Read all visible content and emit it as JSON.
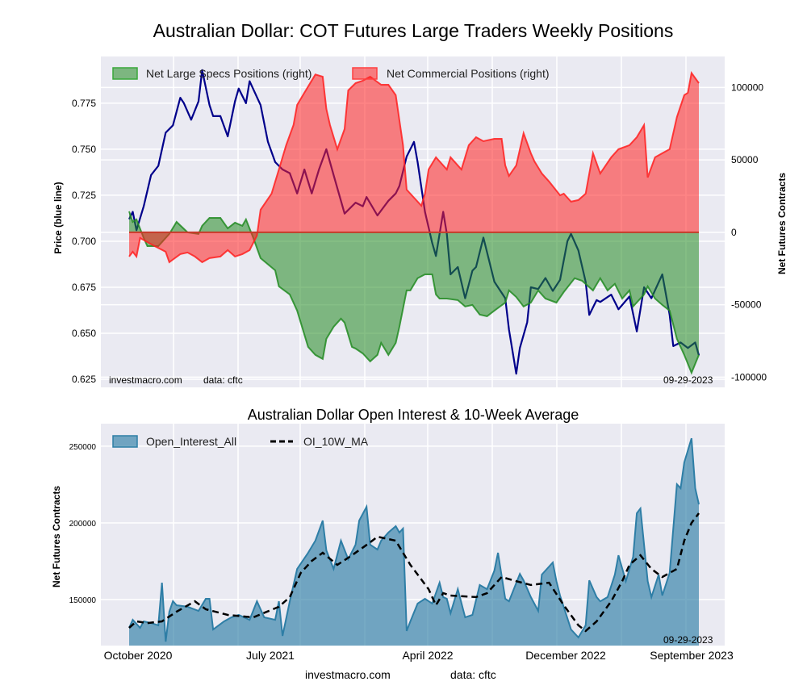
{
  "title": "Australian Dollar: COT Futures Large Traders Weekly Positions",
  "footer": {
    "site": "investmacro.com",
    "source": "data: cftc"
  },
  "colors": {
    "plot_bg": "#eaeaf2",
    "price": "#00008b",
    "commercial": "#ff2020",
    "specs": "#228b22",
    "oi": "#2e7ea6",
    "ma": "#000000"
  },
  "chart_data": [
    {
      "type": "area",
      "title": "Australian Dollar: COT Futures Large Traders Weekly Positions",
      "ylabel": "Price (blue line)",
      "ylabel_right": "Net Futures Contracts",
      "x_unit": "week index",
      "xlim": [
        0,
        156
      ],
      "ylim": [
        0.6206,
        0.8004
      ],
      "ylim_right": [
        -107000,
        121400
      ],
      "yticks": [
        "0.625",
        "0.650",
        "0.675",
        "0.700",
        "0.725",
        "0.750",
        "0.775"
      ],
      "yticks_right": [
        "100000",
        "50000",
        "0",
        "-50000",
        "-100000"
      ],
      "xticks": [
        "October 2020",
        "July 2021",
        "April 2022",
        "December 2022",
        "September 2023"
      ],
      "grid": true,
      "legend_position": "top-left",
      "watermark": {
        "left": "investmacro.com",
        "source": "data: cftc",
        "date": "09-29-2023"
      },
      "series": [
        {
          "name": "Price",
          "axis": "left",
          "x": [
            0,
            1,
            2,
            4,
            6,
            8,
            10,
            12,
            14,
            15,
            17,
            19,
            20,
            22,
            23,
            25,
            27,
            29,
            30,
            32,
            33,
            36,
            38,
            40,
            42,
            44,
            46,
            48,
            50,
            52,
            54,
            56,
            59,
            62,
            64,
            65,
            68,
            71,
            73,
            74,
            76,
            78,
            79,
            81,
            83,
            84,
            86,
            87,
            88,
            90,
            92,
            94,
            95,
            97,
            100,
            103,
            104,
            106,
            107,
            109,
            110,
            112,
            114,
            116,
            118,
            120,
            121,
            123,
            125,
            126,
            128,
            129,
            132,
            134,
            137,
            139,
            141,
            143,
            146,
            148,
            149,
            151,
            153,
            155,
            156
          ],
          "values": [
            0.712,
            0.716,
            0.706,
            0.719,
            0.736,
            0.741,
            0.759,
            0.763,
            0.778,
            0.775,
            0.766,
            0.776,
            0.793,
            0.774,
            0.768,
            0.768,
            0.757,
            0.776,
            0.783,
            0.775,
            0.787,
            0.774,
            0.754,
            0.743,
            0.739,
            0.737,
            0.726,
            0.739,
            0.726,
            0.739,
            0.75,
            0.736,
            0.715,
            0.721,
            0.719,
            0.724,
            0.714,
            0.722,
            0.726,
            0.73,
            0.746,
            0.754,
            0.743,
            0.716,
            0.699,
            0.692,
            0.716,
            0.704,
            0.682,
            0.686,
            0.669,
            0.684,
            0.686,
            0.702,
            0.678,
            0.669,
            0.652,
            0.628,
            0.642,
            0.656,
            0.675,
            0.674,
            0.68,
            0.673,
            0.679,
            0.7,
            0.704,
            0.695,
            0.678,
            0.66,
            0.668,
            0.667,
            0.671,
            0.663,
            0.67,
            0.651,
            0.675,
            0.669,
            0.682,
            0.66,
            0.643,
            0.645,
            0.642,
            0.645,
            0.638
          ]
        },
        {
          "name": "Net Large Specs Positions (right)",
          "axis": "right",
          "x": [
            0,
            1,
            2,
            4,
            5,
            8,
            11,
            13,
            16,
            19,
            20,
            22,
            25,
            27,
            29,
            31,
            32,
            34,
            36,
            40,
            41,
            44,
            46,
            49,
            51,
            53,
            54,
            56,
            58,
            59,
            61,
            62,
            64,
            66,
            68,
            69,
            71,
            73,
            74,
            76,
            77,
            79,
            81,
            83,
            84,
            85,
            87,
            90,
            92,
            94,
            96,
            98,
            100,
            103,
            104,
            106,
            108,
            110,
            112,
            114,
            117,
            119,
            122,
            124,
            127,
            129,
            131,
            133,
            135,
            137,
            138,
            141,
            142,
            144,
            146,
            148,
            150,
            152,
            154,
            156
          ],
          "values": [
            14500,
            7200,
            8900,
            -3900,
            -9500,
            -9500,
            -1100,
            7200,
            0,
            -1100,
            4500,
            10000,
            10000,
            2800,
            6700,
            4500,
            8900,
            -3900,
            -17800,
            -26200,
            -37300,
            -42900,
            -54000,
            -79100,
            -84600,
            -87400,
            -73500,
            -65200,
            -59600,
            -62300,
            -79100,
            -80200,
            -83600,
            -89100,
            -84600,
            -76300,
            -84600,
            -76300,
            -65200,
            -40100,
            -40100,
            -31700,
            -29000,
            -29000,
            -42900,
            -45700,
            -45700,
            -46800,
            -51200,
            -50100,
            -56800,
            -57900,
            -54000,
            -48500,
            -40100,
            -44600,
            -51200,
            -48500,
            -40100,
            -45700,
            -48500,
            -41200,
            -31700,
            -33400,
            -40100,
            -31700,
            -40100,
            -35600,
            -45700,
            -40100,
            -51200,
            -42900,
            -37300,
            -45700,
            -50100,
            -54000,
            -73500,
            -84600,
            -97000,
            -84600
          ]
        },
        {
          "name": "Net Commercial Positions (right)",
          "axis": "right",
          "x": [
            0,
            1,
            2,
            3,
            5,
            7,
            10,
            11,
            14,
            16,
            18,
            20,
            22,
            25,
            27,
            29,
            31,
            33,
            35,
            36,
            39,
            41,
            43,
            45,
            46,
            48,
            51,
            53,
            54,
            55,
            57,
            59,
            60,
            62,
            64,
            66,
            69,
            71,
            73,
            75,
            76,
            77,
            80,
            81,
            82,
            84,
            87,
            88,
            91,
            93,
            95,
            97,
            100,
            102,
            103,
            104,
            106,
            108,
            110,
            111,
            113,
            115,
            118,
            119,
            121,
            123,
            125,
            127,
            129,
            132,
            134,
            137,
            139,
            141,
            142,
            144,
            146,
            148,
            150,
            152,
            153,
            154,
            156
          ],
          "values": [
            -16700,
            -13400,
            -16700,
            -3900,
            -6700,
            -9500,
            -13400,
            -20600,
            -15000,
            -13900,
            -16700,
            -20600,
            -17800,
            -16700,
            -12300,
            -16700,
            -15000,
            -12300,
            -2200,
            15600,
            26700,
            43400,
            60200,
            74100,
            88000,
            96400,
            109000,
            107500,
            85200,
            74100,
            57400,
            71300,
            98000,
            103000,
            104700,
            107500,
            101900,
            101900,
            94700,
            60200,
            29500,
            26700,
            18400,
            26700,
            43400,
            51800,
            43400,
            51800,
            43400,
            60200,
            65700,
            62900,
            64600,
            64600,
            46200,
            39000,
            46200,
            68500,
            54600,
            49000,
            40700,
            35100,
            25600,
            26700,
            21200,
            22300,
            26700,
            54600,
            40700,
            51800,
            57400,
            60200,
            65700,
            74100,
            37900,
            51800,
            54600,
            57400,
            79600,
            94700,
            96400,
            110000,
            103000
          ]
        }
      ]
    },
    {
      "type": "area",
      "title": "Australian Dollar Open Interest & 10-Week Average",
      "ylabel": "Net Futures Contracts",
      "x_unit": "week index",
      "xlim": [
        0,
        156
      ],
      "ylim": [
        120000,
        264700
      ],
      "yticks": [
        "150000",
        "200000",
        "250000"
      ],
      "xticks": [
        "October 2020",
        "July 2021",
        "April 2022",
        "December 2022",
        "September 2023"
      ],
      "grid": true,
      "legend_position": "top-left",
      "watermark": {
        "date": "09-29-2023"
      },
      "series": [
        {
          "name": "Open_Interest_All",
          "x": [
            0,
            1,
            3,
            4,
            6,
            8,
            9,
            10,
            11,
            12,
            13,
            16,
            19,
            21,
            22,
            23,
            26,
            28,
            30,
            33,
            35,
            37,
            40,
            41,
            42,
            44,
            46,
            49,
            51,
            53,
            54,
            56,
            58,
            60,
            62,
            63,
            65,
            66,
            68,
            69,
            71,
            73,
            74,
            75,
            76,
            77,
            79,
            81,
            83,
            85,
            86,
            87,
            88,
            90,
            92,
            94,
            96,
            98,
            100,
            101,
            103,
            104,
            107,
            108,
            110,
            112,
            113,
            116,
            117,
            118,
            121,
            123,
            125,
            126,
            128,
            129,
            131,
            133,
            134,
            136,
            138,
            139,
            140,
            142,
            143,
            145,
            146,
            148,
            150,
            151,
            152,
            154,
            155,
            156
          ],
          "values": [
            131600,
            136800,
            131600,
            135800,
            134700,
            133200,
            161000,
            122600,
            142100,
            149000,
            146300,
            145300,
            142600,
            150500,
            150500,
            130500,
            135800,
            138400,
            140000,
            136800,
            148900,
            138400,
            136800,
            148900,
            126300,
            148900,
            170000,
            180500,
            188400,
            201500,
            182100,
            170000,
            188400,
            176300,
            185800,
            201500,
            210500,
            185800,
            182600,
            188400,
            193700,
            197900,
            193700,
            196300,
            129500,
            135800,
            147400,
            150500,
            147400,
            161000,
            151600,
            150500,
            141100,
            156800,
            138400,
            140000,
            159500,
            156800,
            168900,
            180500,
            150500,
            148900,
            166700,
            162500,
            151600,
            142600,
            166300,
            174200,
            162000,
            152600,
            130500,
            125300,
            133200,
            162500,
            151600,
            148900,
            151600,
            166300,
            178900,
            162000,
            177800,
            206300,
            209400,
            162000,
            151600,
            166300,
            152600,
            167400,
            225200,
            222600,
            239400,
            255200,
            222600,
            212100
          ]
        },
        {
          "name": "OI_10W_MA",
          "x": [
            0,
            2,
            5,
            9,
            13,
            18,
            21,
            27,
            34,
            41,
            44,
            47,
            50,
            53,
            57,
            61,
            66,
            68,
            73,
            77,
            82,
            84,
            86,
            88,
            95,
            98,
            102,
            106,
            110,
            115,
            119,
            123,
            125,
            128,
            132,
            135,
            137,
            140,
            143,
            146,
            150,
            152,
            154,
            156
          ],
          "values": [
            131600,
            135800,
            134700,
            135800,
            142100,
            148900,
            143700,
            140000,
            138400,
            145300,
            151600,
            167400,
            175200,
            180500,
            172600,
            178900,
            187300,
            191000,
            188400,
            172600,
            156800,
            146300,
            154200,
            152600,
            151600,
            154200,
            164700,
            162000,
            159500,
            161000,
            146300,
            133200,
            129500,
            135800,
            148900,
            162000,
            172600,
            178900,
            170000,
            164700,
            170000,
            188400,
            200000,
            206300
          ]
        }
      ]
    }
  ]
}
